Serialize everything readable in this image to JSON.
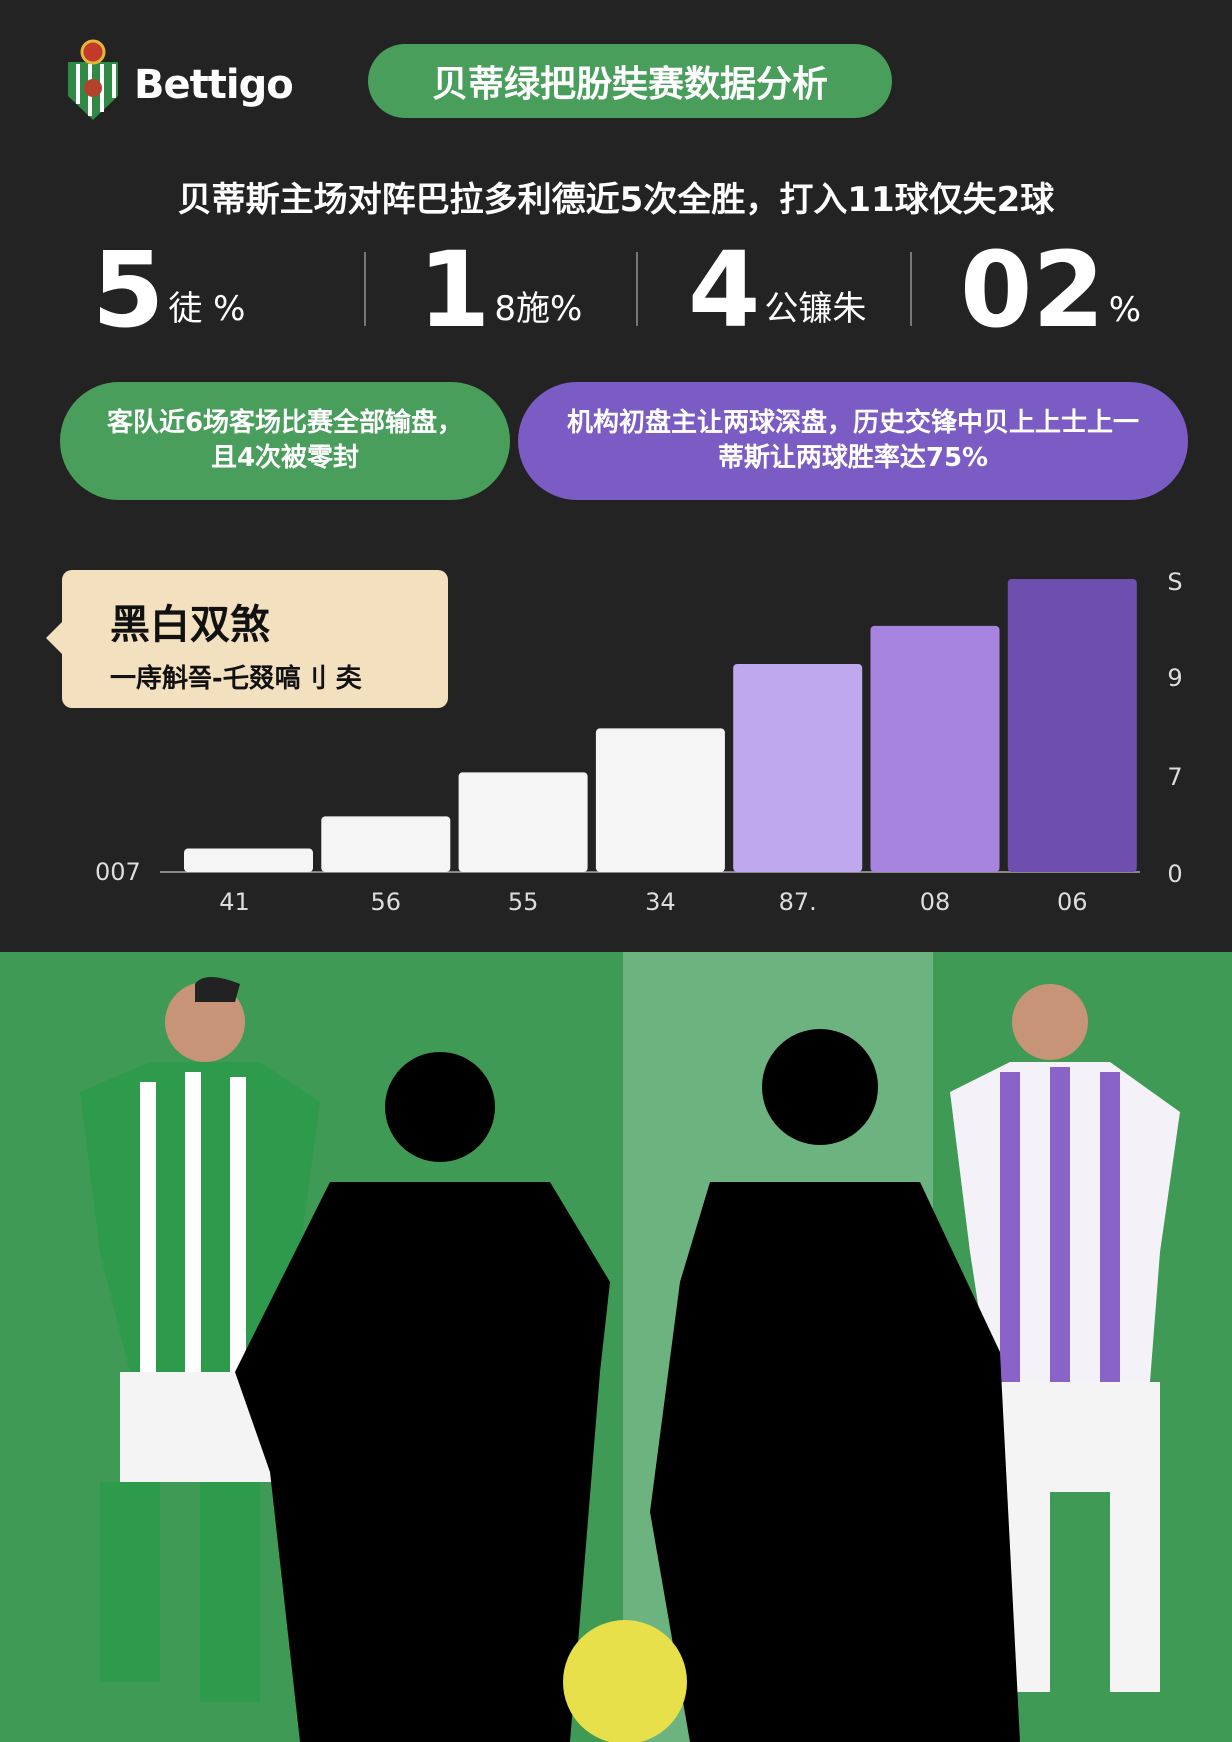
{
  "brand": {
    "name": "Bettigo",
    "logo_icon": "club-crest-icon"
  },
  "title": "贝蒂绿把朌奘赛数据分析",
  "headline": "贝蒂斯主场对阵巴拉多利德近5次全胜，打入11球仅失2球",
  "stats": [
    {
      "value": "5",
      "label": "徒 %"
    },
    {
      "value": "1",
      "label": "8施%"
    },
    {
      "value": "4",
      "label": "公镰朱"
    },
    {
      "value": "02",
      "label": "%"
    }
  ],
  "pills": {
    "green": "客队近6场客场比赛全部输盘，且4次被零封",
    "purple": "机构初盘主让两球深盘，历史交锋中贝上上士上一蒂斯让两球胜率达75%"
  },
  "callout": {
    "title": "黑白双煞",
    "subtitle": "一庤斛쯬-乇叕嗃刂 㚐"
  },
  "colors": {
    "green": "#4a9e5c",
    "purple": "#7b5cc4",
    "background": "#232323",
    "callout": "#f3e0bf"
  },
  "chart_data": {
    "type": "bar",
    "categories": [
      "41",
      "56",
      "55",
      "34",
      "87.",
      "08",
      "06"
    ],
    "values": [
      0.8,
      1.9,
      3.4,
      4.9,
      7.1,
      8.4,
      10
    ],
    "bar_colors": [
      "#f5f5f5",
      "#f5f5f5",
      "#f5f5f5",
      "#f5f5f5",
      "#c0a8ee",
      "#a684e0",
      "#6e4fb0"
    ],
    "ylim": [
      0,
      10
    ],
    "y_tick_labels": [
      "0",
      "7",
      "9",
      "S"
    ],
    "y_axis_position": "right",
    "left_label": "007",
    "grid": false
  }
}
